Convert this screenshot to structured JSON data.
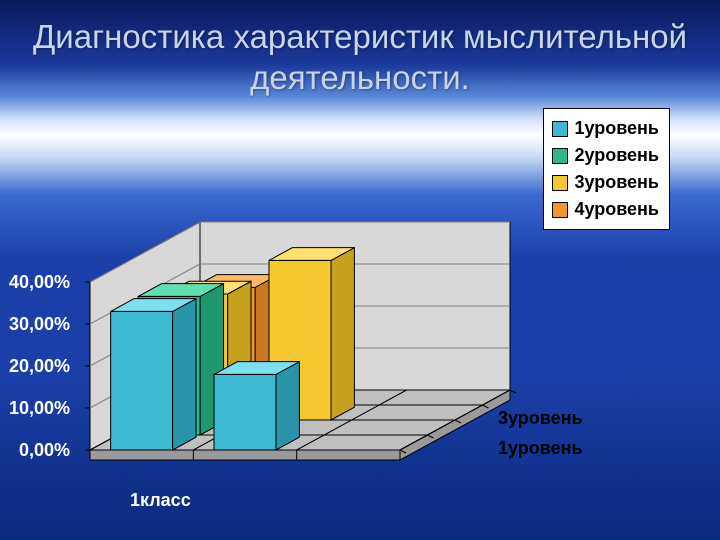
{
  "title": "Диагностика характеристик мыслительной деятельности.",
  "chart": {
    "type": "bar-3d",
    "ylim": [
      0,
      40
    ],
    "yticks": [
      "0,00%",
      "10,00%",
      "20,00%",
      "30,00%",
      "40,00%"
    ],
    "category_label": "1класс",
    "depth_labels": [
      "1уровень",
      "3уровень"
    ],
    "series": [
      {
        "label": "1уровень",
        "color_top": "#7be0f0",
        "color_front": "#3cb8d0",
        "color_side": "#2895aa"
      },
      {
        "label": "2уровень",
        "color_top": "#60e0b0",
        "color_front": "#2cb88a",
        "color_side": "#1f9870"
      },
      {
        "label": "3уровень",
        "color_top": "#ffe070",
        "color_front": "#f5c830",
        "color_side": "#c8a020"
      },
      {
        "label": "4уровень",
        "color_top": "#ffb860",
        "color_front": "#f09830",
        "color_side": "#c87820"
      }
    ],
    "group1": [
      33,
      33,
      30,
      28
    ],
    "group2": [
      18,
      0,
      38,
      0
    ],
    "floor_color": "#c0c0c0",
    "floor_side": "#9a9a9a",
    "wall_color": "#d8d8d8",
    "grid_color": "#808080",
    "tick_text_color": "#ffffff",
    "label_text_color": "#ffffff",
    "title_color": "#c8d4e8",
    "title_fontsize": 33,
    "label_fontsize": 18,
    "legend_bg": "#ffffff",
    "legend_border": "#000000"
  }
}
